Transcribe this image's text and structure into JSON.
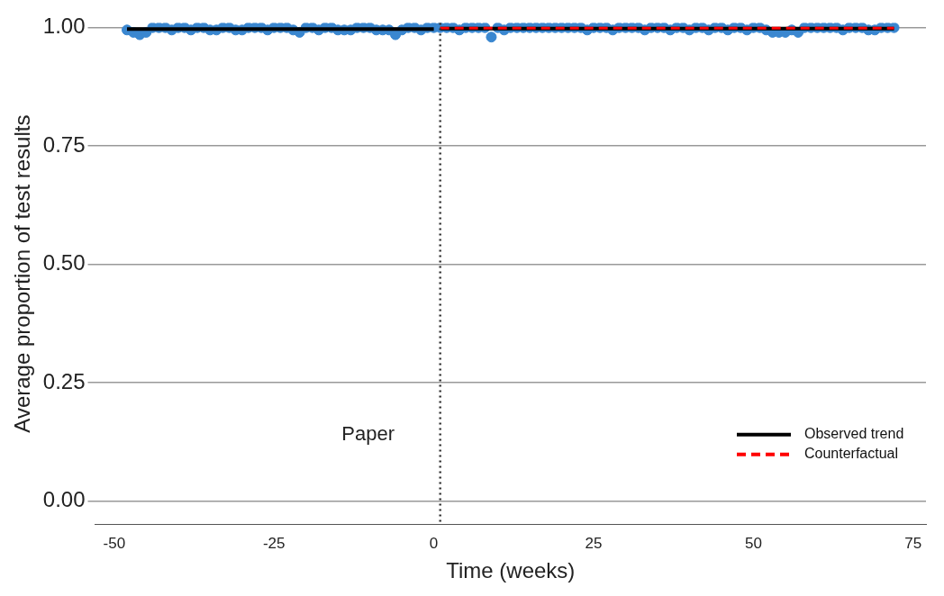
{
  "chart_data": {
    "type": "scatter",
    "xlabel": "Time (weeks)",
    "ylabel": "Average proportion of test results",
    "x": [
      -48,
      -47,
      -46,
      -45,
      -44,
      -43,
      -42,
      -41,
      -40,
      -39,
      -38,
      -37,
      -36,
      -35,
      -34,
      -33,
      -32,
      -31,
      -30,
      -29,
      -28,
      -27,
      -26,
      -25,
      -24,
      -23,
      -22,
      -21,
      -20,
      -19,
      -18,
      -17,
      -16,
      -15,
      -14,
      -13,
      -12,
      -11,
      -10,
      -9,
      -8,
      -7,
      -6,
      -5,
      -4,
      -3,
      -2,
      -1,
      0,
      1,
      2,
      3,
      4,
      5,
      6,
      7,
      8,
      9,
      10,
      11,
      12,
      13,
      14,
      15,
      16,
      17,
      18,
      19,
      20,
      21,
      22,
      23,
      24,
      25,
      26,
      27,
      28,
      29,
      30,
      31,
      32,
      33,
      34,
      35,
      36,
      37,
      38,
      39,
      40,
      41,
      42,
      43,
      44,
      45,
      46,
      47,
      48,
      49,
      50,
      51,
      52,
      53,
      54,
      55,
      56,
      57,
      58,
      59,
      60,
      61,
      62,
      63,
      64,
      65,
      66,
      67,
      68,
      69,
      70,
      71,
      72
    ],
    "series": [
      {
        "color": "#3a87d0",
        "marker": "circle",
        "values": [
          0.995,
          0.99,
          0.985,
          0.99,
          1,
          1,
          1,
          0.995,
          1,
          1,
          0.995,
          1,
          1,
          0.995,
          0.995,
          1,
          1,
          0.995,
          0.995,
          1,
          1,
          1,
          0.995,
          1,
          1,
          1,
          0.995,
          0.99,
          1,
          1,
          0.995,
          1,
          1,
          0.995,
          0.995,
          0.995,
          1,
          1,
          1,
          0.995,
          0.995,
          0.995,
          0.985,
          0.995,
          1,
          1,
          0.995,
          1,
          1,
          1,
          1,
          1,
          0.995,
          1,
          1,
          1,
          1,
          0.98,
          1,
          0.995,
          1,
          1,
          1,
          1,
          1,
          1,
          1,
          1,
          1,
          1,
          1,
          1,
          0.995,
          1,
          1,
          1,
          0.995,
          1,
          1,
          1,
          1,
          0.995,
          1,
          1,
          1,
          0.995,
          1,
          1,
          0.995,
          1,
          1,
          0.995,
          1,
          1,
          0.995,
          1,
          1,
          0.995,
          1,
          1,
          0.995,
          0.99,
          0.99,
          0.99,
          0.995,
          0.99,
          1,
          1,
          1,
          1,
          1,
          1,
          0.995,
          1,
          1,
          1,
          0.995,
          0.995,
          1,
          1,
          1
        ]
      },
      {
        "type": "line",
        "name": "Observed trend",
        "color": "#000000",
        "line_style": "solid",
        "x": [
          -48,
          0,
          0.5,
          1,
          72
        ],
        "values": [
          0.997,
          0.997,
          null,
          0.998,
          0.998
        ]
      },
      {
        "type": "line",
        "name": "Counterfactual",
        "color": "#ff0000",
        "line_style": "dashed",
        "x": [
          1,
          72
        ],
        "values": [
          0.999,
          0.999
        ]
      }
    ],
    "xlim": [
      -53,
      77
    ],
    "xticks": [
      -50,
      -25,
      0,
      25,
      50,
      75
    ],
    "ylim": [
      -0.05,
      1.01
    ],
    "yticks": [
      {
        "value": 0,
        "label": "0.00"
      },
      {
        "value": 0.25,
        "label": "0.25"
      },
      {
        "value": 0.5,
        "label": "0.50"
      },
      {
        "value": 0.75,
        "label": "0.75"
      },
      {
        "value": 1,
        "label": "1.00"
      }
    ],
    "grid": "y",
    "legend": "bottom right",
    "ref_lines": [
      {
        "axis": "x",
        "value": 1,
        "line_style": "dotted",
        "color": "#333333"
      }
    ],
    "annotations": [
      "Paper"
    ]
  }
}
